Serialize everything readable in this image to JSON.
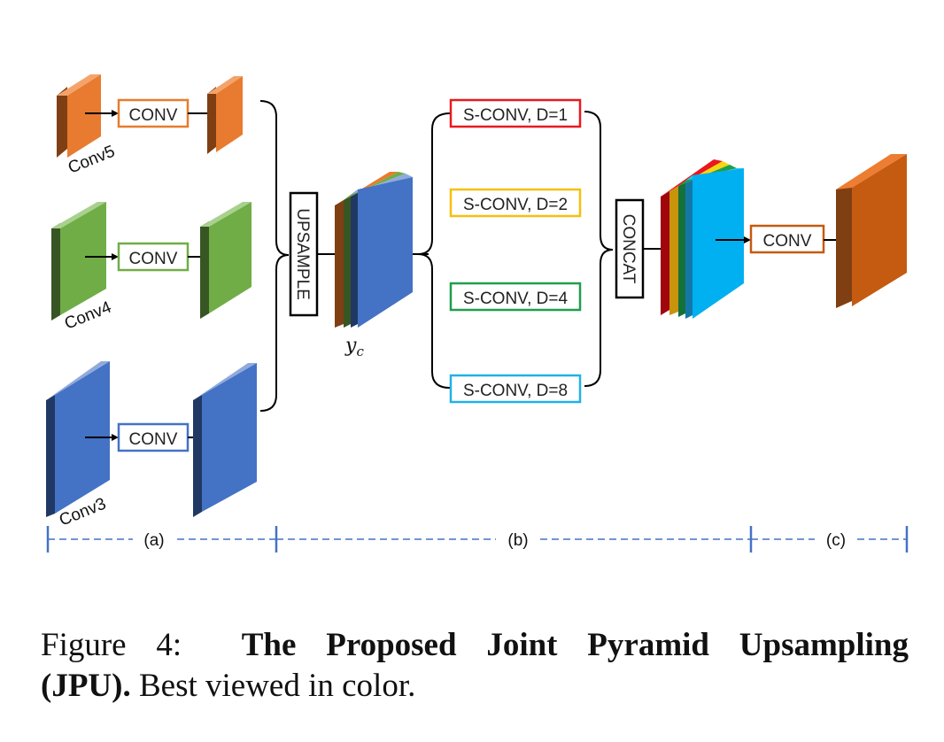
{
  "modules": {
    "conv_label": "CONV",
    "upsample_label": "UPSAMPLE",
    "concat_label": "CONCAT",
    "output_conv_label": "CONV"
  },
  "inputs": {
    "conv5": "Conv5",
    "conv4": "Conv4",
    "conv3": "Conv3"
  },
  "feature_label": "y",
  "feature_subscript": "c",
  "separable_convs": [
    {
      "label": "S-CONV, D=1",
      "color": "#e8191e"
    },
    {
      "label": "S-CONV, D=2",
      "color": "#f6bf0f"
    },
    {
      "label": "S-CONV, D=4",
      "color": "#1f9e4b"
    },
    {
      "label": "S-CONV, D=8",
      "color": "#21b1e6"
    }
  ],
  "sections": {
    "a": "(a)",
    "b": "(b)",
    "c": "(c)"
  },
  "colors": {
    "conv5": "#e87b2f",
    "conv4": "#70ad47",
    "conv3": "#4472c4",
    "concat_front": "#00b0f0",
    "output": "#c55a11",
    "timeline": "#4472c4"
  },
  "caption": {
    "prefix": "Figure 4:",
    "bold_part1": "The Proposed Joint Pyramid Upsampling",
    "bold_part2": "(JPU).",
    "rest": "Best viewed in color."
  }
}
